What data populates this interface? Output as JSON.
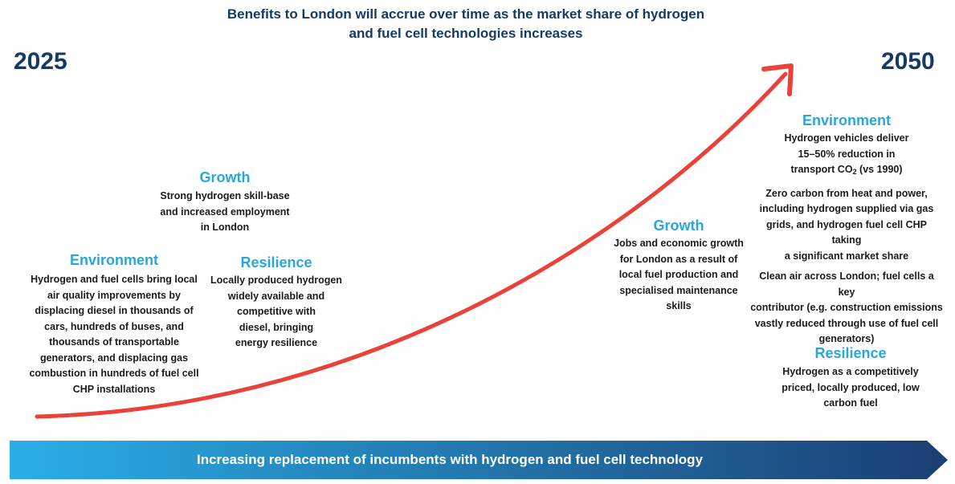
{
  "header": {
    "title_line1": "Benefits to London will accrue over time as the market share of hydrogen",
    "title_line2": "and fuel cell technologies increases"
  },
  "timeline": {
    "start_year": "2025",
    "end_year": "2050",
    "banner_label": "Increasing replacement of incumbents with hydrogen and fuel cell technology"
  },
  "colors": {
    "arrow": "#e8423a",
    "heading": "#2aa6dc",
    "title": "#163a63",
    "banner_start": "#2aaee6",
    "banner_end": "#1b3f73"
  },
  "early": {
    "growth": {
      "heading": "Growth",
      "lines": [
        "Strong hydrogen skill-base",
        "and increased employment",
        "in London"
      ]
    },
    "environment": {
      "heading": "Environment",
      "lines": [
        "Hydrogen and fuel cells bring local",
        "air quality improvements by",
        "displacing diesel in thousands of",
        "cars, hundreds of buses, and",
        "thousands of transportable",
        "generators, and displacing gas",
        "combustion in hundreds of fuel cell",
        "CHP installations"
      ]
    },
    "resilience": {
      "heading": "Resilience",
      "lines": [
        "Locally produced hydrogen",
        "widely available and",
        "competitive with",
        "diesel, bringing",
        "energy resilience"
      ]
    }
  },
  "mid": {
    "growth": {
      "heading": "Growth",
      "lines": [
        "Jobs and economic growth",
        "for London as a result of",
        "local fuel production and",
        "specialised maintenance",
        "skills"
      ]
    }
  },
  "late": {
    "environment": {
      "heading": "Environment",
      "para1_lines": [
        "Hydrogen vehicles deliver",
        "15–50% reduction in"
      ],
      "para1_co2_prefix": "transport CO",
      "para1_co2_sub": "2",
      "para1_co2_suffix": " (vs 1990)",
      "para2_lines": [
        "Zero carbon from heat and power,",
        "including hydrogen supplied via gas",
        "grids, and hydrogen fuel cell CHP taking",
        "a significant market share"
      ],
      "para3_lines": [
        "Clean air across London; fuel cells a key",
        "contributor (e.g. construction emissions",
        "vastly reduced through use of fuel cell",
        "generators)"
      ]
    },
    "resilience": {
      "heading": "Resilience",
      "lines": [
        "Hydrogen as a competitively",
        "priced, locally produced, low",
        "carbon fuel"
      ]
    }
  }
}
